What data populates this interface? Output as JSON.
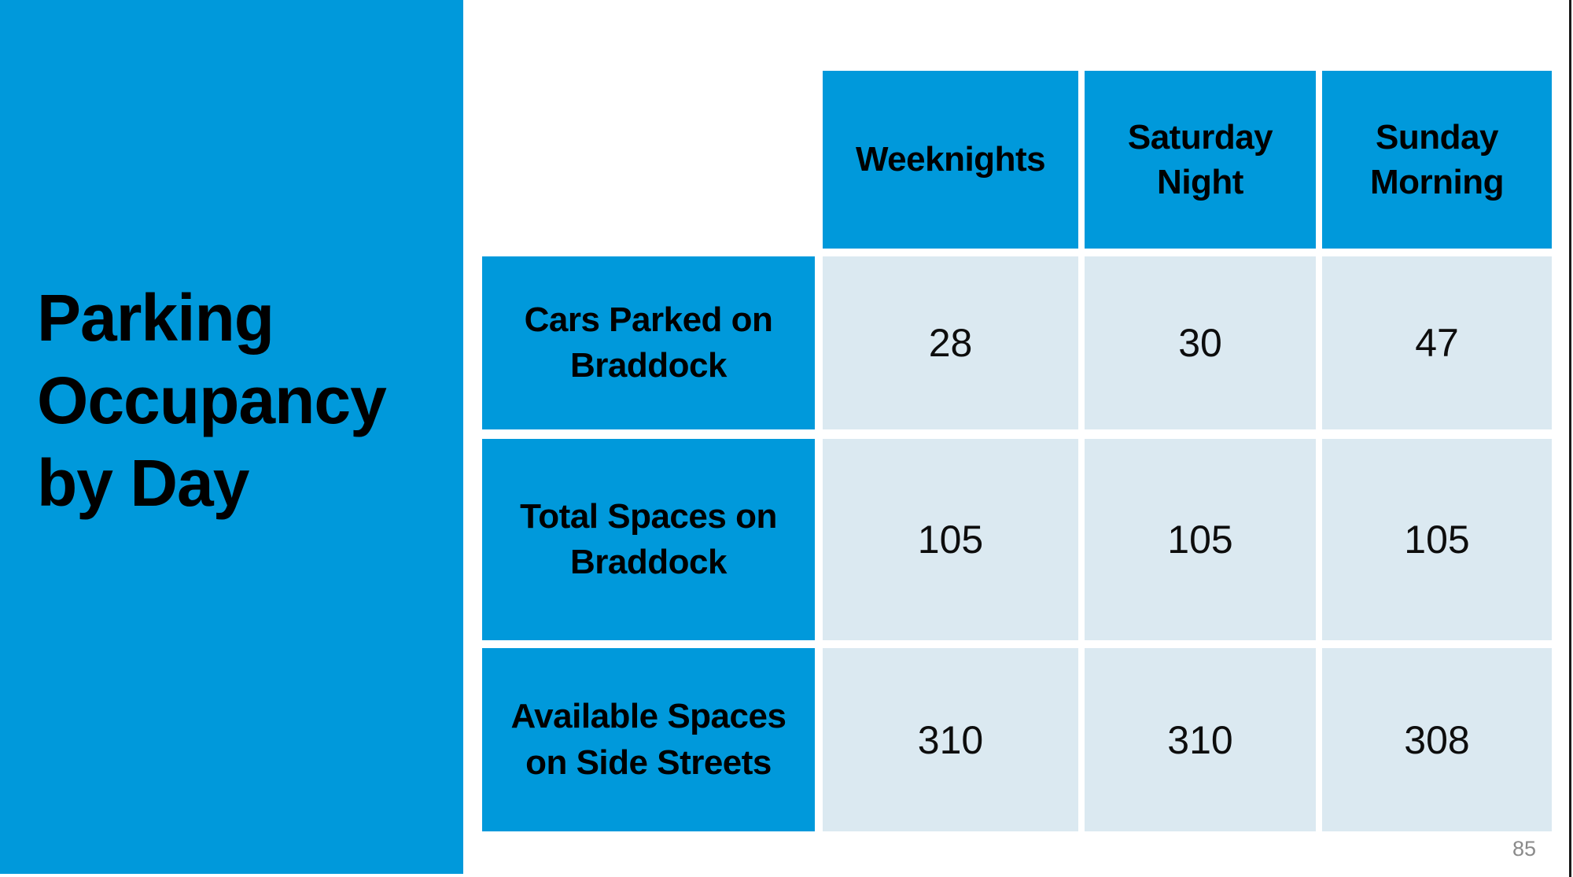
{
  "slide": {
    "title": "Parking Occupancy by Day",
    "page_number": "85"
  },
  "chart_data": {
    "type": "table",
    "title": "Parking Occupancy by Day",
    "columns": [
      "Weeknights",
      "Saturday Night",
      "Sunday Morning"
    ],
    "rows": [
      {
        "label": "Cars Parked on Braddock",
        "values": [
          28,
          30,
          47
        ]
      },
      {
        "label": "Total Spaces on Braddock",
        "values": [
          105,
          105,
          105
        ]
      },
      {
        "label": "Available Spaces on Side Streets",
        "values": [
          310,
          310,
          308
        ]
      }
    ],
    "layout": {
      "legend": "none",
      "grid": "off",
      "header_fill": "blue-accent",
      "value_cell_fill": "light-blue"
    }
  },
  "colors": {
    "accent_blue": "#0099db",
    "light_blue_cell": "#dbe9f1",
    "title_text": "#000000",
    "page_number_gray": "#8a8a8a",
    "frame_line": "#1a1a1a"
  }
}
